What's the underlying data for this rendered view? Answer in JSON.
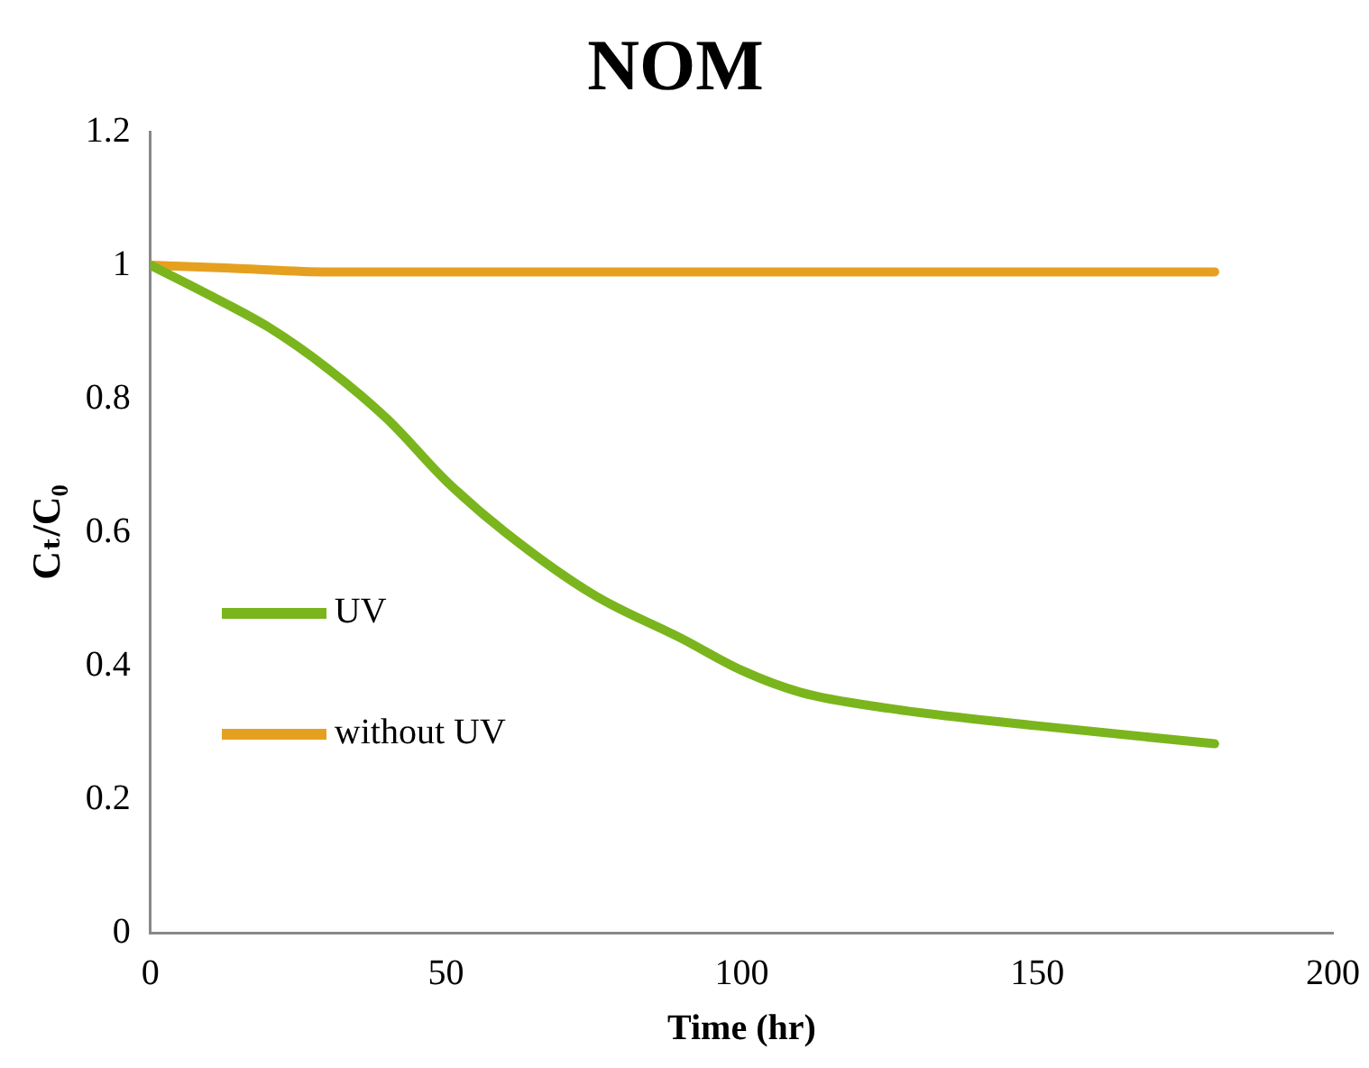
{
  "chart_data": {
    "type": "line",
    "title": "NOM",
    "xlabel": "Time (hr)",
    "ylabel": "Cₜ/C₀",
    "xlim": [
      0,
      200
    ],
    "xticks": [
      0,
      50,
      100,
      150,
      200
    ],
    "ylim": [
      0,
      1.2
    ],
    "yticks": [
      0,
      0.2,
      0.4,
      0.6,
      0.8,
      1,
      1.2
    ],
    "grid": false,
    "legend": "left",
    "marker": "none",
    "line_style": "solid",
    "series": [
      {
        "name": "UV",
        "color": "#7ab51d",
        "x": [
          0,
          10,
          20,
          30,
          40,
          50,
          60,
          75,
          90,
          100,
          110,
          125,
          150,
          180
        ],
        "values": [
          1,
          0.955,
          0.907,
          0.845,
          0.77,
          0.677,
          0.6,
          0.506,
          0.44,
          0.393,
          0.36,
          0.336,
          0.31,
          0.283
        ]
      },
      {
        "name": "without UV",
        "color": "#e6a020",
        "x": [
          0,
          15,
          30,
          60,
          100,
          140,
          180
        ],
        "values": [
          1,
          0.995,
          0.99,
          0.99,
          0.99,
          0.99,
          0.99
        ]
      }
    ]
  }
}
